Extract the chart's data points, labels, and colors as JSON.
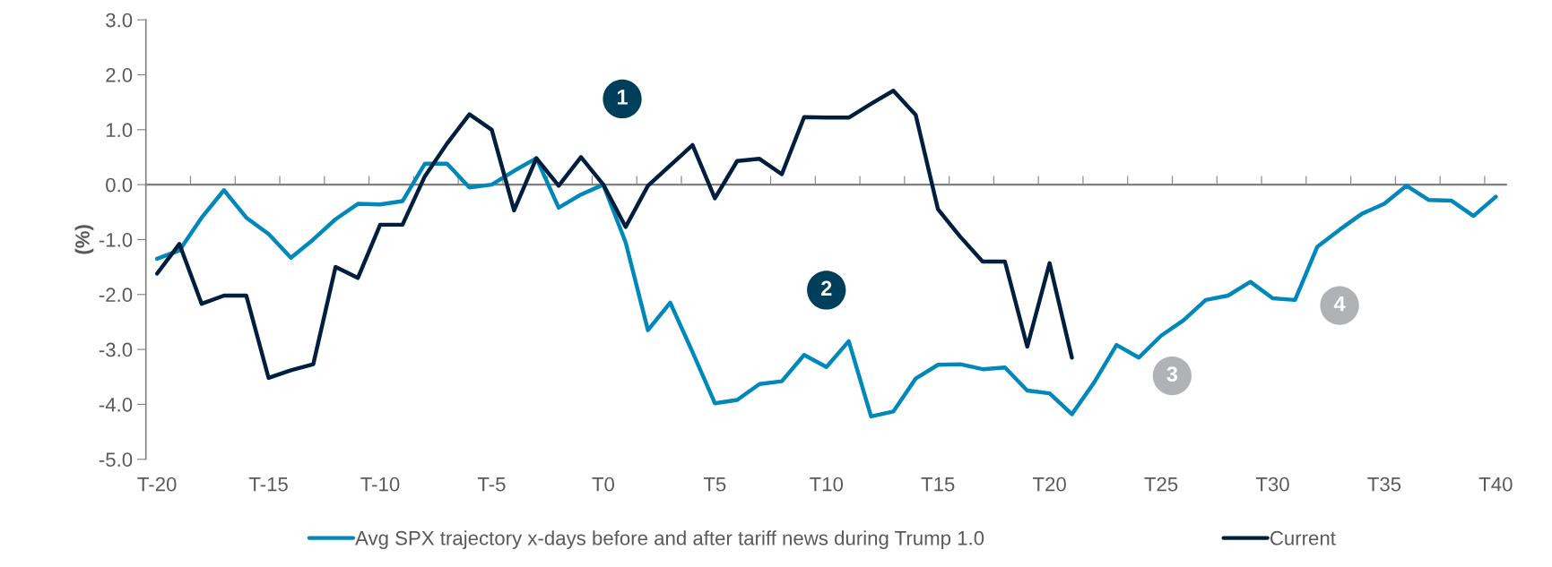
{
  "chart_data": {
    "type": "line",
    "ylabel": "(%)",
    "categories": [
      "T-20",
      null,
      null,
      null,
      null,
      "T-15",
      null,
      null,
      null,
      null,
      "T-10",
      null,
      null,
      null,
      null,
      "T-5",
      null,
      null,
      null,
      null,
      "T0",
      null,
      null,
      null,
      null,
      "T5",
      null,
      null,
      null,
      null,
      "T10",
      null,
      null,
      null,
      null,
      "T15",
      null,
      null,
      null,
      null,
      "T20",
      null,
      null,
      null,
      null,
      "T25",
      null,
      null,
      null,
      null,
      "T30",
      null,
      null,
      null,
      null,
      "T35",
      null,
      null,
      null,
      null,
      "T40"
    ],
    "series": [
      {
        "name": "Avg SPX trajectory x-days before and after tariff news during Trump 1.0",
        "color": "#0088bb",
        "values": [
          -1.35,
          -1.2,
          -0.6,
          -0.1,
          -0.6,
          -0.9,
          -1.33,
          -1.0,
          -0.63,
          -0.35,
          -0.36,
          -0.3,
          0.38,
          0.38,
          -0.05,
          0.0,
          0.25,
          0.48,
          -0.42,
          -0.18,
          0.0,
          -1.05,
          -2.65,
          -2.15,
          -3.05,
          -3.98,
          -3.92,
          -3.63,
          -3.58,
          -3.1,
          -3.32,
          -2.85,
          -4.22,
          -4.13,
          -3.53,
          -3.28,
          -3.27,
          -3.36,
          -3.33,
          -3.75,
          -3.8,
          -4.18,
          -3.6,
          -2.92,
          -3.15,
          -2.75,
          -2.47,
          -2.1,
          -2.02,
          -1.77,
          -2.07,
          -2.1,
          -1.13,
          -0.82,
          -0.53,
          -0.35,
          -0.02,
          -0.28,
          -0.29,
          -0.57,
          -0.22
        ]
      },
      {
        "name": "Current",
        "color": "#001f3f",
        "values": [
          -1.62,
          -1.08,
          -2.17,
          -2.02,
          -2.02,
          -3.52,
          -3.38,
          -3.27,
          -1.5,
          -1.7,
          -0.73,
          -0.73,
          0.15,
          0.75,
          1.28,
          1.0,
          -0.47,
          0.48,
          -0.02,
          0.5,
          0.0,
          -0.77,
          -0.02,
          0.35,
          0.72,
          -0.25,
          0.43,
          0.47,
          0.19,
          1.23,
          1.22,
          1.22,
          1.47,
          1.71,
          1.27,
          -0.45,
          -0.95,
          -1.4,
          -1.4,
          -2.95,
          -1.43,
          -3.15,
          null,
          null,
          null,
          null,
          null,
          null,
          null,
          null,
          null,
          null,
          null,
          null,
          null,
          null,
          null,
          null,
          null,
          null,
          null
        ]
      }
    ],
    "ylim": [
      -5.0,
      3.0
    ],
    "yticks": [
      {
        "value": -5.0,
        "label": "-5.0"
      },
      {
        "value": -4.0,
        "label": "-4.0"
      },
      {
        "value": -3.0,
        "label": "-3.0"
      },
      {
        "value": -2.0,
        "label": "-2.0"
      },
      {
        "value": -1.0,
        "label": "-1.0"
      },
      {
        "value": 0.0,
        "label": "0.0"
      },
      {
        "value": 1.0,
        "label": "1.0"
      },
      {
        "value": 2.0,
        "label": "2.0"
      },
      {
        "value": 3.0,
        "label": "3.0"
      }
    ],
    "ref_lines": [
      {
        "axis": "y",
        "value": 0,
        "color": "#808080"
      }
    ],
    "annotations": [
      "1",
      "2",
      "3",
      "4"
    ],
    "grid": false,
    "legend": "bottom",
    "marker": "none",
    "line_style": "solid"
  }
}
